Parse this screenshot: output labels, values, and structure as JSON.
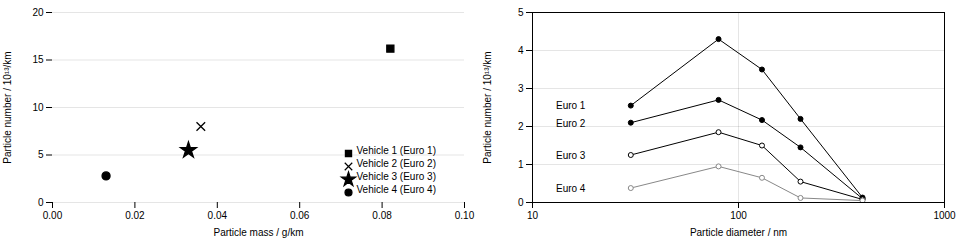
{
  "chart_data": [
    {
      "type": "scatter",
      "xlabel": "Particle mass / g/km",
      "ylabel": "Particle number / 10¹³/km",
      "series": [
        {
          "name": "Vehicle 1 (Euro 1)",
          "marker": "square",
          "color": "#000000",
          "x": [
            0.082
          ],
          "values": [
            16.2
          ]
        },
        {
          "name": "Vehicle 2 (Euro 2)",
          "marker": "x",
          "color": "#000000",
          "x": [
            0.036
          ],
          "values": [
            8.0
          ]
        },
        {
          "name": "Vehicle 3 (Euro 3)",
          "marker": "star",
          "color": "#000000",
          "x": [
            0.033
          ],
          "values": [
            5.5
          ]
        },
        {
          "name": "Vehicle 4 (Euro 4)",
          "marker": "circle",
          "color": "#000000",
          "x": [
            0.013
          ],
          "values": [
            2.8
          ]
        }
      ],
      "xlim": [
        0.0,
        0.1
      ],
      "xticks": [
        {
          "value": 0.0,
          "label": "0.00"
        },
        {
          "value": 0.02,
          "label": "0.02"
        },
        {
          "value": 0.04,
          "label": "0.04"
        },
        {
          "value": 0.06,
          "label": "0.06"
        },
        {
          "value": 0.08,
          "label": "0.08"
        },
        {
          "value": 0.1,
          "label": "0.10"
        }
      ],
      "ylim": [
        0,
        20
      ],
      "yticks": [
        0,
        5,
        10,
        15,
        20
      ],
      "grid": "y",
      "legend": "lower right"
    },
    {
      "type": "line",
      "xlabel": "Particle diameter / nm",
      "ylabel": "Particle number / 10¹³/km",
      "x": [
        30,
        80,
        130,
        200,
        400
      ],
      "series": [
        {
          "name": "Euro 1",
          "color": "#000000",
          "marker": "circle",
          "values": [
            2.55,
            4.3,
            3.5,
            2.2,
            0.13
          ]
        },
        {
          "name": "Euro 2",
          "color": "#000000",
          "marker": "circle",
          "values": [
            2.1,
            2.7,
            2.17,
            1.45,
            0.1
          ]
        },
        {
          "name": "Euro 3",
          "color": "#000000",
          "marker": "ring",
          "values": [
            1.25,
            1.85,
            1.5,
            0.55,
            0.08
          ]
        },
        {
          "name": "Euro 4",
          "color": "#888888",
          "marker": "ring",
          "values": [
            0.38,
            0.95,
            0.65,
            0.12,
            0.05
          ]
        }
      ],
      "annotations": [
        {
          "text": "Euro 1",
          "x": 13,
          "y": 2.55
        },
        {
          "text": "Euro 2",
          "x": 13,
          "y": 2.07
        },
        {
          "text": "Euro 3",
          "x": 13,
          "y": 1.22
        },
        {
          "text": "Euro 4",
          "x": 13,
          "y": 0.35
        }
      ],
      "log": "x",
      "xlim": [
        10,
        1000
      ],
      "xticks": [
        10,
        100,
        1000
      ],
      "ylim": [
        0,
        5
      ],
      "yticks": [
        0,
        1,
        2,
        3,
        4,
        5
      ],
      "grid": true
    }
  ]
}
